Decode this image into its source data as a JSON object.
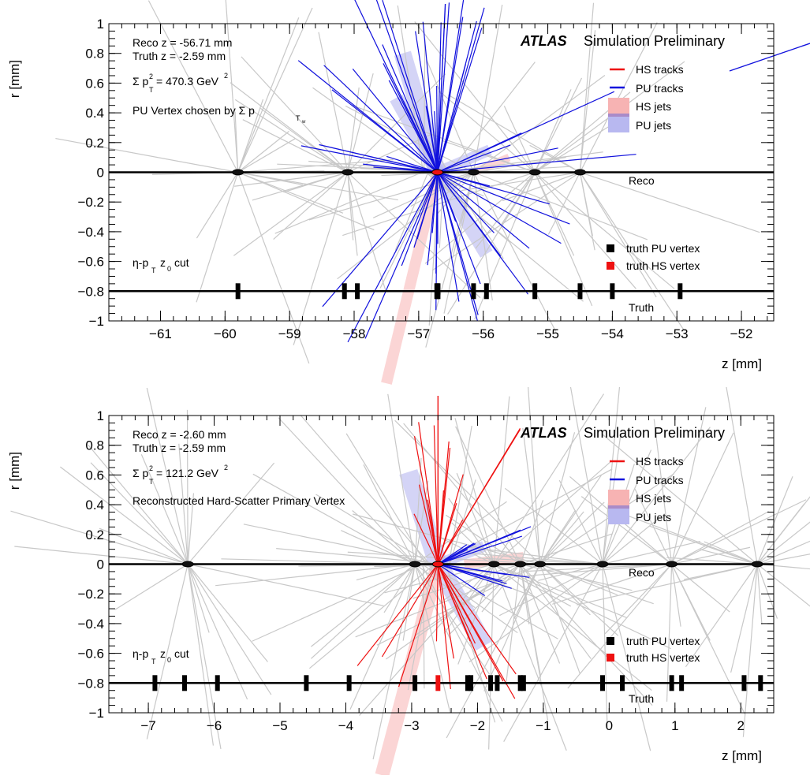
{
  "chart_data": [
    {
      "type": "scatter",
      "panel": "top",
      "xlabel": "z [mm]",
      "ylabel": "r [mm]",
      "xlim": [
        -61.8,
        -51.5
      ],
      "ylim": [
        -1,
        1
      ],
      "xticks": [
        -61,
        -60,
        -59,
        -58,
        -57,
        -56,
        -55,
        -54,
        -53,
        -52
      ],
      "xtick_labels": [
        "−61",
        "−60",
        "−59",
        "−58",
        "−57",
        "−56",
        "−55",
        "−54",
        "−53",
        "−52"
      ],
      "yticks": [
        1,
        0.8,
        0.6,
        0.4,
        0.2,
        0,
        -0.2,
        -0.4,
        -0.6,
        -0.8,
        -1
      ],
      "ytick_labels": [
        "1",
        "0.8",
        "0.6",
        "0.4",
        "0.2",
        "0",
        "−0.2",
        "−0.4",
        "−0.6",
        "−0.8",
        "−1"
      ],
      "experiment": "ATLAS",
      "label": "Simulation Preliminary",
      "info": {
        "reco_z": "Reco z = -56.71 mm",
        "truth_z": "Truth z = -2.59 mm",
        "sum_pt2_value": "= 470.3 GeV",
        "description": "PU Vertex chosen by Σ p"
      },
      "cut_label": "z",
      "reco_line_label": "Reco",
      "truth_line_label": "Truth",
      "legend": {
        "hs_tracks": "HS tracks",
        "pu_tracks": "PU tracks",
        "hs_jets": "HS jets",
        "pu_jets": "PU jets",
        "truth_pu_vertex": "truth PU vertex",
        "truth_hs_vertex": "truth HS vertex"
      },
      "reco_vertices_z": [
        -59.8,
        -58.1,
        -56.71,
        -56.15,
        -55.2,
        -54.5
      ],
      "chosen_vertex_z": -56.71,
      "truth_pu_vertices_z": [
        -59.8,
        -58.15,
        -57.95,
        -56.72,
        -56.7,
        -56.15,
        -55.95,
        -55.2,
        -54.5,
        -54.0,
        -52.95
      ],
      "truth_hs_vertices_z": [],
      "pu_tracks": {
        "vertex_z": -56.71,
        "count": 60
      },
      "hs_tracks": {
        "vertex_z": -56.71,
        "count": 0
      },
      "jets": [
        {
          "kind": "pu",
          "z0": -56.71,
          "z1": -57.25,
          "r1": 0.8,
          "width": 0.55
        },
        {
          "kind": "pu",
          "z0": -56.71,
          "z1": -57.35,
          "r1": 0.5,
          "width": 0.45
        },
        {
          "kind": "pu",
          "z0": -56.71,
          "z1": -55.95,
          "r1": -0.55,
          "width": 0.45
        },
        {
          "kind": "pu",
          "z0": -56.71,
          "z1": -55.9,
          "r1": 0.15,
          "width": 0.35
        },
        {
          "kind": "hs",
          "z0": -56.71,
          "z1": -57.5,
          "r1": -1.42,
          "width": 0.35
        },
        {
          "kind": "hs",
          "z0": -56.15,
          "z1": -55.6,
          "r1": 0.1,
          "width": 0.25
        }
      ]
    },
    {
      "type": "scatter",
      "panel": "bottom",
      "xlabel": "z [mm]",
      "ylabel": "r [mm]",
      "xlim": [
        -7.6,
        2.5
      ],
      "ylim": [
        -1,
        1
      ],
      "xticks": [
        -7,
        -6,
        -5,
        -4,
        -3,
        -2,
        -1,
        0,
        1,
        2
      ],
      "xtick_labels": [
        "−7",
        "−6",
        "−5",
        "−4",
        "−3",
        "−2",
        "−1",
        "0",
        "1",
        "2"
      ],
      "yticks": [
        1,
        0.8,
        0.6,
        0.4,
        0.2,
        0,
        -0.2,
        -0.4,
        -0.6,
        -0.8,
        -1
      ],
      "ytick_labels": [
        "1",
        "0.8",
        "0.6",
        "0.4",
        "0.2",
        "0",
        "−0.2",
        "−0.4",
        "−0.6",
        "−0.8",
        "−1"
      ],
      "experiment": "ATLAS",
      "label": "Simulation Preliminary",
      "info": {
        "reco_z": "Reco z = -2.60 mm",
        "truth_z": "Truth z = -2.59 mm",
        "sum_pt2_value": "= 121.2 GeV",
        "description": "Reconstructed Hard-Scatter Primary Vertex"
      },
      "cut_label": "z",
      "reco_line_label": "Reco",
      "truth_line_label": "Truth",
      "legend": {
        "hs_tracks": "HS tracks",
        "pu_tracks": "PU tracks",
        "hs_jets": "HS jets",
        "pu_jets": "PU jets",
        "truth_pu_vertex": "truth PU vertex",
        "truth_hs_vertex": "truth HS vertex"
      },
      "reco_vertices_z": [
        -6.4,
        -2.95,
        -2.6,
        -1.75,
        -1.35,
        -1.05,
        -0.1,
        0.95,
        2.25
      ],
      "chosen_vertex_z": -2.6,
      "truth_pu_vertices_z": [
        -6.9,
        -6.45,
        -5.95,
        -4.6,
        -3.95,
        -2.95,
        -2.15,
        -2.1,
        -1.8,
        -1.7,
        -1.35,
        -1.3,
        -0.1,
        0.2,
        0.95,
        1.1,
        2.05,
        2.3
      ],
      "truth_hs_vertices_z": [
        -2.6
      ],
      "pu_tracks": {
        "vertex_z": -2.6,
        "count": 14
      },
      "hs_tracks": {
        "vertex_z": -2.6,
        "count": 26
      },
      "jets": [
        {
          "kind": "pu",
          "z0": -2.6,
          "z1": -3.05,
          "r1": 0.62,
          "width": 0.6
        },
        {
          "kind": "pu",
          "z0": -2.6,
          "z1": -1.9,
          "r1": -0.55,
          "width": 0.6
        },
        {
          "kind": "pu",
          "z0": -2.6,
          "z1": -1.9,
          "r1": 0.12,
          "width": 0.35
        },
        {
          "kind": "hs",
          "z0": -2.6,
          "z1": -3.45,
          "r1": -1.42,
          "width": 0.45
        },
        {
          "kind": "hs",
          "z0": -2.2,
          "z1": -1.3,
          "r1": 0.05,
          "width": 0.3
        }
      ]
    }
  ],
  "colors": {
    "hs_track": "#ee1111",
    "pu_track": "#1111dd",
    "other_track": "#c8c8c8",
    "hs_jet": "#f7b3b3",
    "pu_jet": "#b8b8f0",
    "truth_hs_vertex": "#ee1111",
    "truth_pu_vertex": "#000000"
  }
}
